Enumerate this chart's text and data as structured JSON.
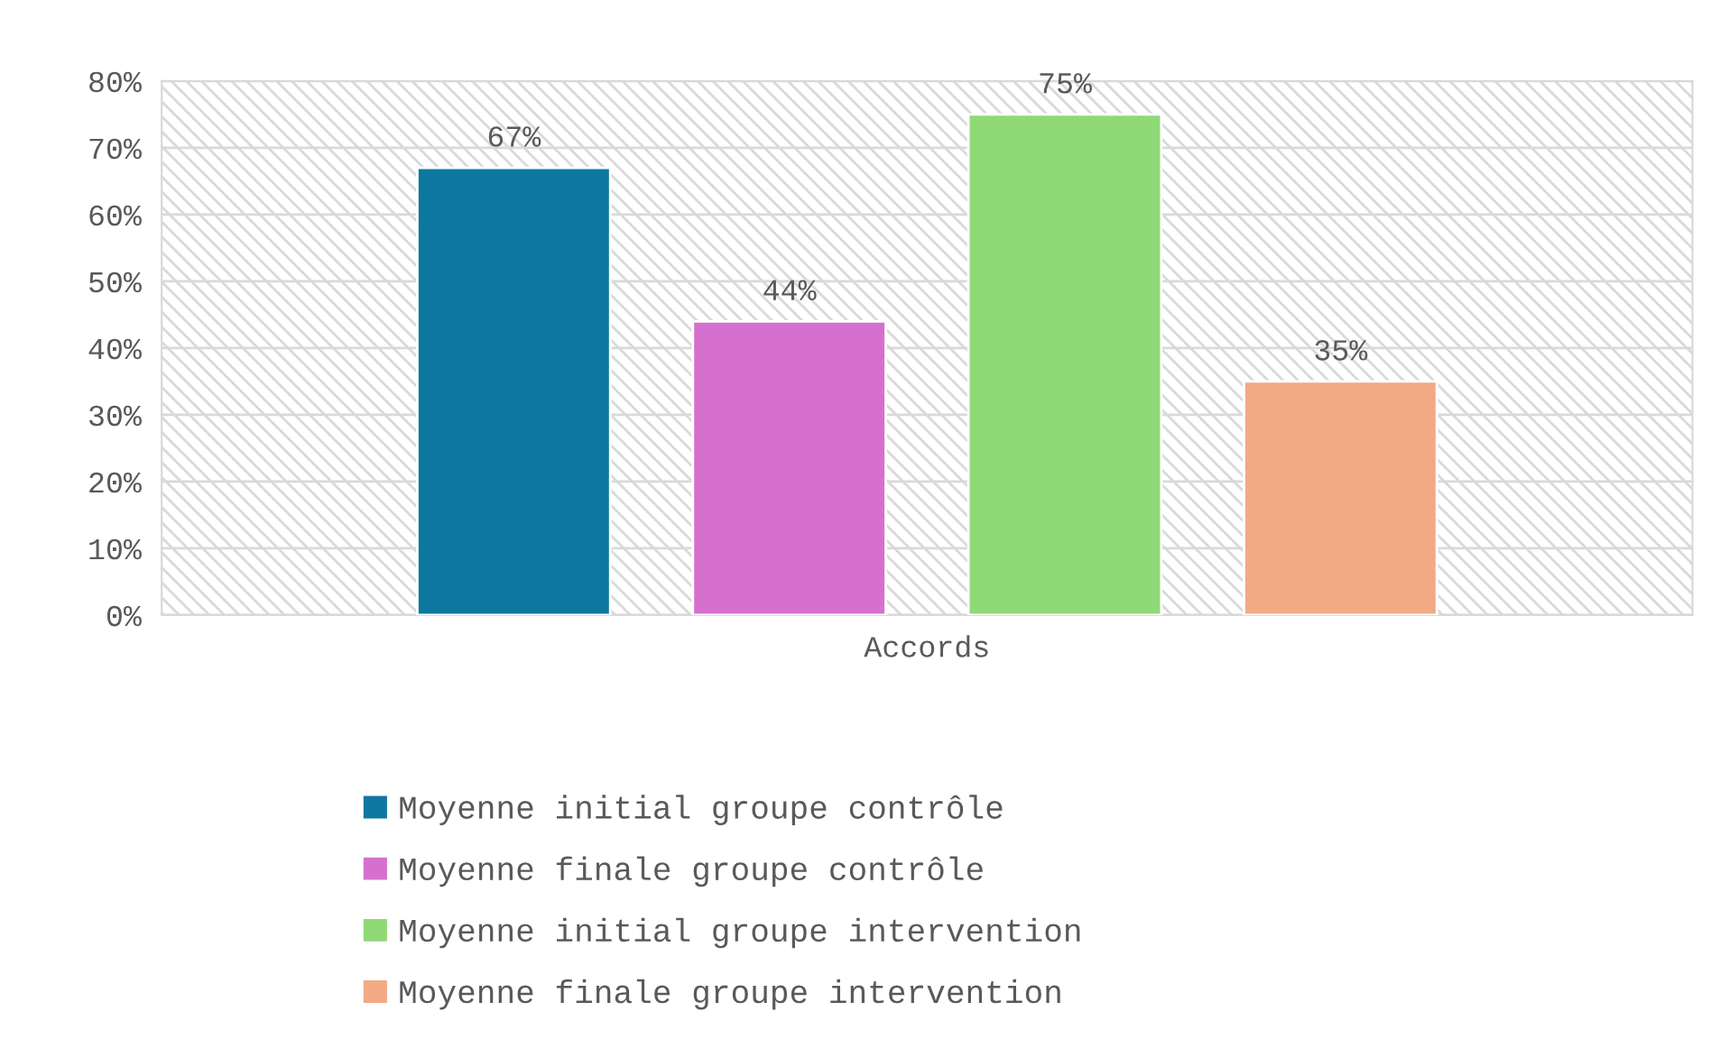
{
  "chart_data": {
    "type": "bar",
    "categories": [
      "Accords"
    ],
    "series": [
      {
        "name": "Moyenne initial groupe contrôle",
        "color": "#0e77a0",
        "values": [
          67
        ],
        "value_labels": [
          "67%"
        ]
      },
      {
        "name": "Moyenne finale groupe contrôle",
        "color": "#d670cf",
        "values": [
          44
        ],
        "value_labels": [
          "44%"
        ]
      },
      {
        "name": "Moyenne initial groupe intervention",
        "color": "#90d977",
        "values": [
          75
        ],
        "value_labels": [
          "75%"
        ]
      },
      {
        "name": "Moyenne finale groupe intervention",
        "color": "#f2aa84",
        "values": [
          35
        ],
        "value_labels": [
          "35%"
        ]
      }
    ],
    "ylim": [
      0,
      80
    ],
    "yticks": [
      {
        "value": 0,
        "label": "0%"
      },
      {
        "value": 10,
        "label": "10%"
      },
      {
        "value": 20,
        "label": "20%"
      },
      {
        "value": 30,
        "label": "30%"
      },
      {
        "value": 40,
        "label": "40%"
      },
      {
        "value": 50,
        "label": "50%"
      },
      {
        "value": 60,
        "label": "60%"
      },
      {
        "value": 70,
        "label": "70%"
      },
      {
        "value": 80,
        "label": "80%"
      }
    ],
    "grid": "y",
    "legend": "bottom"
  }
}
